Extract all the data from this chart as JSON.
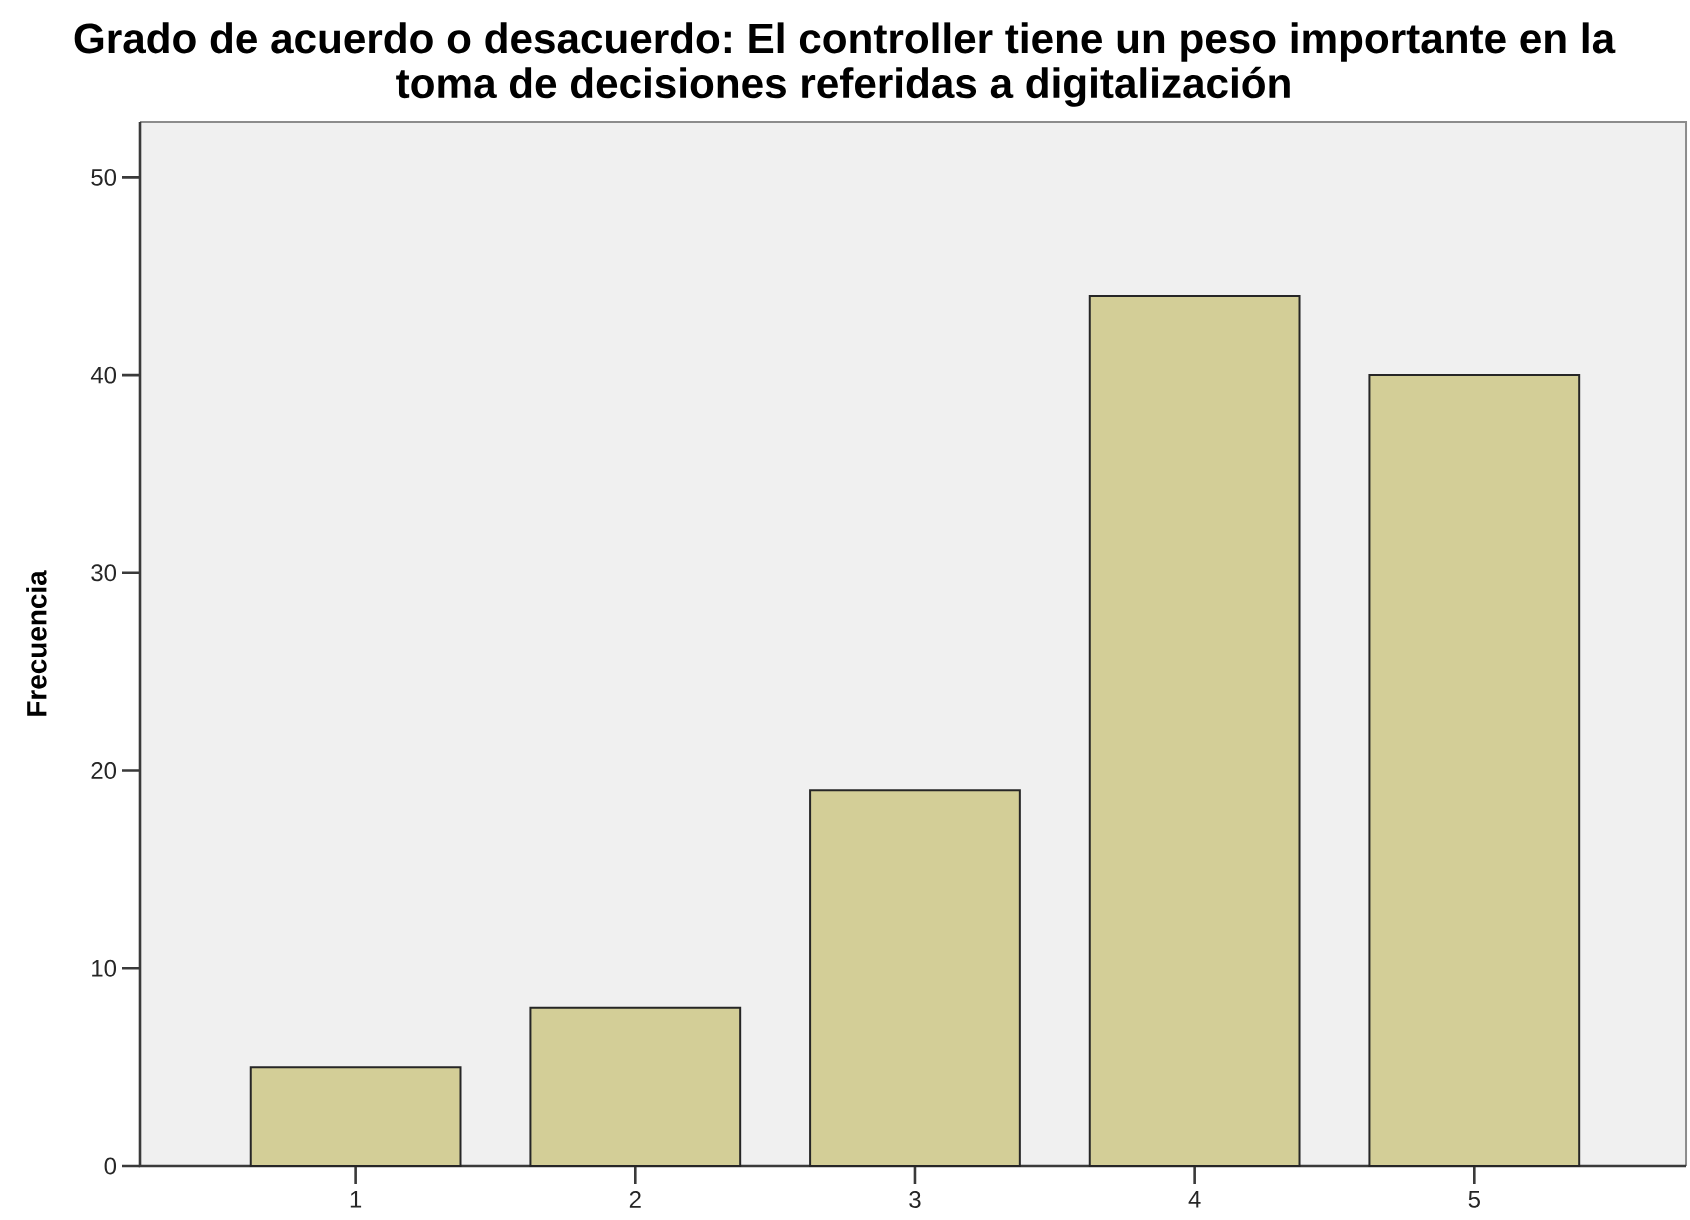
{
  "chart_data": {
    "type": "bar",
    "title": "Grado de acuerdo o desacuerdo: El controller tiene un peso importante en la toma de decisiones referidas a digitalización",
    "ylabel": "Frecuencia",
    "categories": [
      "1",
      "2",
      "3",
      "4",
      "5"
    ],
    "values": [
      5,
      8,
      19,
      44,
      40
    ],
    "color": "#d3ce97",
    "ylim": [
      0,
      52.8
    ],
    "yticks": [
      0,
      10,
      20,
      30,
      40,
      50
    ]
  }
}
